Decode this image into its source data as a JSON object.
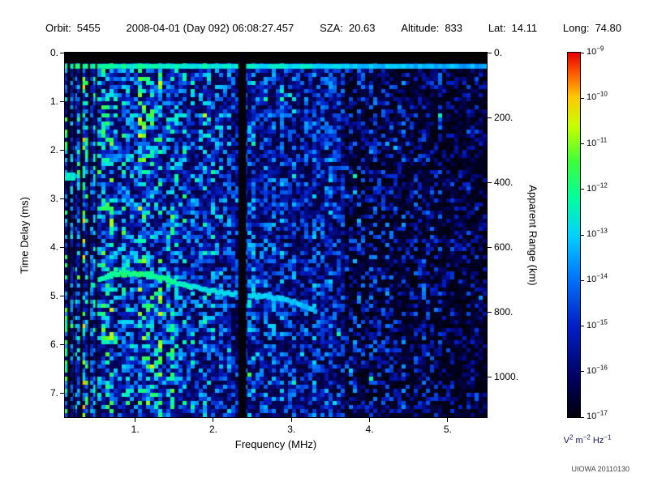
{
  "header": {
    "items": [
      {
        "label": "Orbit:",
        "value": "5455"
      },
      {
        "label": "",
        "value": "2008-04-01 (Day 092) 06:08:27.457"
      },
      {
        "label": "SZA:",
        "value": "20.63"
      },
      {
        "label": "Altitude:",
        "value": "833"
      },
      {
        "label": "Lat:",
        "value": "14.11"
      },
      {
        "label": "Long:",
        "value": "74.80"
      }
    ]
  },
  "footer": {
    "credit": "UIOWA 20110130"
  },
  "chart_data": {
    "type": "heatmap",
    "title": "Radar sounder ionogram spectrogram",
    "xlabel": "Frequency (MHz)",
    "ylabel_left": "Time Delay (ms)",
    "ylabel_right": "Apparent Range (km)",
    "x_range_mhz": [
      0.1,
      5.5
    ],
    "y_range_ms": [
      0.0,
      7.5
    ],
    "x_ticks": {
      "values": [
        1,
        2,
        3,
        4,
        5
      ],
      "labels": [
        "1.",
        "2.",
        "3.",
        "4.",
        "5."
      ]
    },
    "y_ticks_left": {
      "values": [
        0,
        1,
        2,
        3,
        4,
        5,
        6,
        7
      ],
      "labels": [
        "0.",
        "1.",
        "2.",
        "3.",
        "4.",
        "5.",
        "6.",
        "7."
      ]
    },
    "y_ticks_right": {
      "values_km": [
        0,
        200,
        400,
        600,
        800,
        1000
      ],
      "labels": [
        "0.",
        "200.",
        "400.",
        "600.",
        "800.",
        "1000."
      ],
      "km_per_ms": 150
    },
    "colorbar": {
      "scale": "log",
      "tick_exponents": [
        -9,
        -10,
        -11,
        -12,
        -13,
        -14,
        -15,
        -16,
        -17
      ],
      "top_value": "1e-9",
      "bottom_value": "1e-17",
      "unit_parts": [
        [
          "V",
          "2"
        ],
        [
          "m",
          "-2"
        ],
        [
          "Hz",
          "-1"
        ]
      ]
    },
    "features": {
      "transmit_pulse_black_band_ms": [
        0.0,
        0.22
      ],
      "receiver_bright_line_ms": [
        0.23,
        0.33
      ],
      "interference_stripes_mhz": [
        [
          0.15,
          0.035
        ],
        [
          0.22,
          0.02
        ],
        [
          0.31,
          0.03
        ],
        [
          0.41,
          0.025
        ],
        [
          0.5,
          0.018
        ],
        [
          2.37,
          0.1
        ]
      ],
      "noise_dark_region_start_mhz": 3.7,
      "local_plasma_blob": {
        "f_mhz": 0.13,
        "t_ms": 2.55
      },
      "echo_trace_f_t": [
        [
          0.45,
          4.8
        ],
        [
          0.55,
          4.65
        ],
        [
          0.65,
          4.6
        ],
        [
          0.8,
          4.55
        ],
        [
          1.0,
          4.55
        ],
        [
          1.2,
          4.58
        ],
        [
          1.35,
          4.65
        ],
        [
          1.5,
          4.72
        ],
        [
          1.7,
          4.82
        ],
        [
          1.9,
          4.88
        ],
        [
          2.1,
          4.93
        ],
        [
          2.3,
          4.97
        ],
        [
          2.5,
          5.0
        ],
        [
          2.7,
          5.02
        ],
        [
          2.9,
          5.08
        ],
        [
          3.05,
          5.15
        ],
        [
          3.2,
          5.25
        ],
        [
          3.3,
          5.32
        ]
      ]
    },
    "colormap_stops": [
      [
        0.0,
        0,
        0,
        10
      ],
      [
        0.1,
        0,
        0,
        90
      ],
      [
        0.25,
        0,
        30,
        200
      ],
      [
        0.4,
        0,
        130,
        255
      ],
      [
        0.5,
        0,
        210,
        255
      ],
      [
        0.6,
        0,
        255,
        160
      ],
      [
        0.7,
        60,
        255,
        60
      ],
      [
        0.8,
        200,
        255,
        0
      ],
      [
        0.88,
        255,
        200,
        0
      ],
      [
        0.95,
        255,
        80,
        0
      ],
      [
        1.0,
        230,
        0,
        0
      ]
    ]
  }
}
